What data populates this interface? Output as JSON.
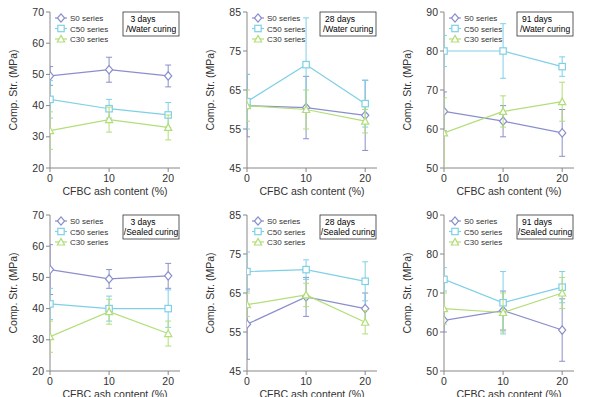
{
  "chart_data": [
    {
      "type": "line",
      "title": "3 days",
      "subtitle": "/Water curing",
      "xlabel": "CFBC ash content (%)",
      "ylabel": "Comp. Str. (MPa)",
      "x": [
        0,
        10,
        20
      ],
      "xlim": [
        0,
        22
      ],
      "xticks": [
        0,
        10,
        20
      ],
      "ylim": [
        20,
        70
      ],
      "yticks": [
        20,
        30,
        40,
        50,
        60,
        70
      ],
      "legend": "upper left",
      "series": [
        {
          "name": "S0 series",
          "color": "#8a8fcc",
          "marker": "diamond",
          "values": [
            49.5,
            51.5,
            49.5
          ],
          "errors": [
            3,
            4,
            3.5
          ]
        },
        {
          "name": "C50 series",
          "color": "#7fd0e6",
          "marker": "square",
          "values": [
            42,
            39,
            37
          ],
          "errors": [
            6,
            3,
            4
          ]
        },
        {
          "name": "C30 series",
          "color": "#b2de78",
          "marker": "triangle",
          "values": [
            32,
            35.5,
            33
          ],
          "errors": [
            6,
            4,
            4
          ]
        }
      ]
    },
    {
      "type": "line",
      "title": "28 days",
      "subtitle": "/Water curing",
      "xlabel": "CFBC ash content (%)",
      "ylabel": "Comp. Str. (MPa)",
      "x": [
        0,
        10,
        20
      ],
      "xlim": [
        0,
        22
      ],
      "xticks": [
        0,
        10,
        20
      ],
      "ylim": [
        45,
        85
      ],
      "yticks": [
        45,
        55,
        65,
        75,
        85
      ],
      "legend": "upper left",
      "series": [
        {
          "name": "S0 series",
          "color": "#8a8fcc",
          "marker": "diamond",
          "values": [
            61,
            60.5,
            58.5
          ],
          "errors": [
            8,
            8,
            9
          ]
        },
        {
          "name": "C50 series",
          "color": "#7fd0e6",
          "marker": "square",
          "values": [
            62,
            71.5,
            61.5
          ],
          "errors": [
            7,
            12,
            6
          ]
        },
        {
          "name": "C30 series",
          "color": "#b2de78",
          "marker": "triangle",
          "values": [
            61,
            60,
            57
          ],
          "errors": [
            4,
            5,
            3
          ]
        }
      ]
    },
    {
      "type": "line",
      "title": "91 days",
      "subtitle": "/Water curing",
      "xlabel": "CFBC ash content (%)",
      "ylabel": "Comp. Str. (MPa)",
      "x": [
        0,
        10,
        20
      ],
      "xlim": [
        0,
        22
      ],
      "xticks": [
        0,
        10,
        20
      ],
      "ylim": [
        50,
        90
      ],
      "yticks": [
        50,
        60,
        70,
        80,
        90
      ],
      "legend": "upper left",
      "series": [
        {
          "name": "S0 series",
          "color": "#8a8fcc",
          "marker": "diamond",
          "values": [
            64.5,
            62,
            59
          ],
          "errors": [
            5,
            4,
            6
          ]
        },
        {
          "name": "C50 series",
          "color": "#7fd0e6",
          "marker": "square",
          "values": [
            80,
            80,
            76
          ],
          "errors": [
            4,
            7,
            2.5
          ]
        },
        {
          "name": "C30 series",
          "color": "#b2de78",
          "marker": "triangle",
          "values": [
            59,
            64.5,
            67
          ],
          "errors": [
            9,
            4,
            5
          ]
        }
      ]
    },
    {
      "type": "line",
      "title": "3 days",
      "subtitle": "/Sealed curing",
      "xlabel": "CFBC ash content (%)",
      "ylabel": "Comp. Str. (MPa)",
      "x": [
        0,
        10,
        20
      ],
      "xlim": [
        0,
        22
      ],
      "xticks": [
        0,
        10,
        20
      ],
      "ylim": [
        20,
        70
      ],
      "yticks": [
        20,
        30,
        40,
        50,
        60,
        70
      ],
      "legend": "upper left",
      "series": [
        {
          "name": "S0 series",
          "color": "#8a8fcc",
          "marker": "diamond",
          "values": [
            52.5,
            49.5,
            50.5
          ],
          "errors": [
            8,
            3,
            4
          ]
        },
        {
          "name": "C50 series",
          "color": "#7fd0e6",
          "marker": "square",
          "values": [
            41.5,
            40,
            40
          ],
          "errors": [
            5,
            4,
            6
          ]
        },
        {
          "name": "C30 series",
          "color": "#b2de78",
          "marker": "triangle",
          "values": [
            31,
            39,
            32
          ],
          "errors": [
            5,
            4,
            4
          ]
        }
      ]
    },
    {
      "type": "line",
      "title": "28 days",
      "subtitle": "/Sealed curing",
      "xlabel": "CFBC ash content (%)",
      "ylabel": "Comp. Str. (MPa)",
      "x": [
        0,
        10,
        20
      ],
      "xlim": [
        0,
        22
      ],
      "xticks": [
        0,
        10,
        20
      ],
      "ylim": [
        45,
        85
      ],
      "yticks": [
        45,
        55,
        65,
        75,
        85
      ],
      "legend": "upper left",
      "series": [
        {
          "name": "S0 series",
          "color": "#8a8fcc",
          "marker": "diamond",
          "values": [
            57,
            64,
            61
          ],
          "errors": [
            9,
            5,
            4
          ]
        },
        {
          "name": "C50 series",
          "color": "#7fd0e6",
          "marker": "square",
          "values": [
            70.5,
            71,
            68
          ],
          "errors": [
            5,
            2.5,
            5
          ]
        },
        {
          "name": "C30 series",
          "color": "#b2de78",
          "marker": "triangle",
          "values": [
            62,
            64.5,
            57.5
          ],
          "errors": [
            3,
            3,
            3
          ]
        }
      ]
    },
    {
      "type": "line",
      "title": "91 days",
      "subtitle": "/Sealed curing",
      "xlabel": "CFBC ash content (%)",
      "ylabel": "Comp. Str. (MPa)",
      "x": [
        0,
        10,
        20
      ],
      "xlim": [
        0,
        22
      ],
      "xticks": [
        0,
        10,
        20
      ],
      "ylim": [
        50,
        90
      ],
      "yticks": [
        50,
        60,
        70,
        80,
        90
      ],
      "legend": "upper left",
      "series": [
        {
          "name": "S0 series",
          "color": "#8a8fcc",
          "marker": "diamond",
          "values": [
            63,
            65.5,
            60.5
          ],
          "errors": [
            3,
            5,
            8
          ]
        },
        {
          "name": "C50 series",
          "color": "#7fd0e6",
          "marker": "square",
          "values": [
            73.5,
            67.5,
            71.5
          ],
          "errors": [
            3,
            8,
            4
          ]
        },
        {
          "name": "C30 series",
          "color": "#b2de78",
          "marker": "triangle",
          "values": [
            66,
            65,
            70
          ],
          "errors": [
            4,
            5,
            4
          ]
        }
      ]
    }
  ]
}
